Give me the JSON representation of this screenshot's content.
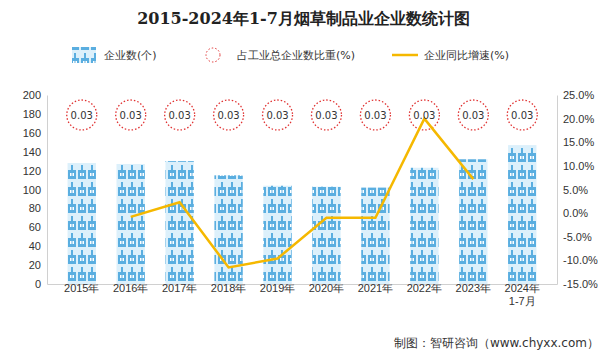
{
  "chart_data": {
    "type": "bar",
    "title": "2015-2024年1-7月烟草制品业企业数统计图",
    "source": "制图：智研咨询（www.chyxx.com）",
    "categories": [
      "2015年",
      "2016年",
      "2017年",
      "2018年",
      "2019年",
      "2020年",
      "2021年",
      "2022年",
      "2023年",
      "2024年\n1-7月"
    ],
    "series": [
      {
        "name": "企业数(个)",
        "type": "bar",
        "color": "#5aaee0",
        "values": [
          128,
          127,
          130,
          115,
          104,
          103,
          102,
          123,
          132,
          147
        ]
      },
      {
        "name": "占工业总企业数比重(%)",
        "type": "scatter",
        "marker": "circle",
        "line_style": "dotted",
        "color": "#e03030",
        "data_labels": true,
        "values": [
          0.03,
          0.03,
          0.03,
          0.03,
          0.03,
          0.03,
          0.03,
          0.03,
          0.03,
          0.03
        ]
      },
      {
        "name": "企业同比增速(%)",
        "type": "line",
        "axis": "y2",
        "color": "#f5b800",
        "values": [
          null,
          -0.8,
          2.3,
          -11.5,
          -9.6,
          -1.0,
          -1.0,
          20.0,
          7.2,
          null
        ]
      }
    ],
    "ylim": [
      0,
      200
    ],
    "yticks": [
      0,
      20,
      40,
      60,
      80,
      100,
      120,
      140,
      160,
      180,
      200
    ],
    "y2lim": [
      -15,
      25
    ],
    "y2ticks": [
      {
        "value": -15,
        "label": "-15.0%"
      },
      {
        "value": -10,
        "label": "-10.0%"
      },
      {
        "value": -5,
        "label": "-5.0%"
      },
      {
        "value": 0,
        "label": "0.0%"
      },
      {
        "value": 5,
        "label": "5.0%"
      },
      {
        "value": 10,
        "label": "10.0%"
      },
      {
        "value": 15,
        "label": "15.0%"
      },
      {
        "value": 20,
        "label": "20.0%"
      },
      {
        "value": 25,
        "label": "25.0%"
      }
    ],
    "legend": "top",
    "grid": false
  }
}
